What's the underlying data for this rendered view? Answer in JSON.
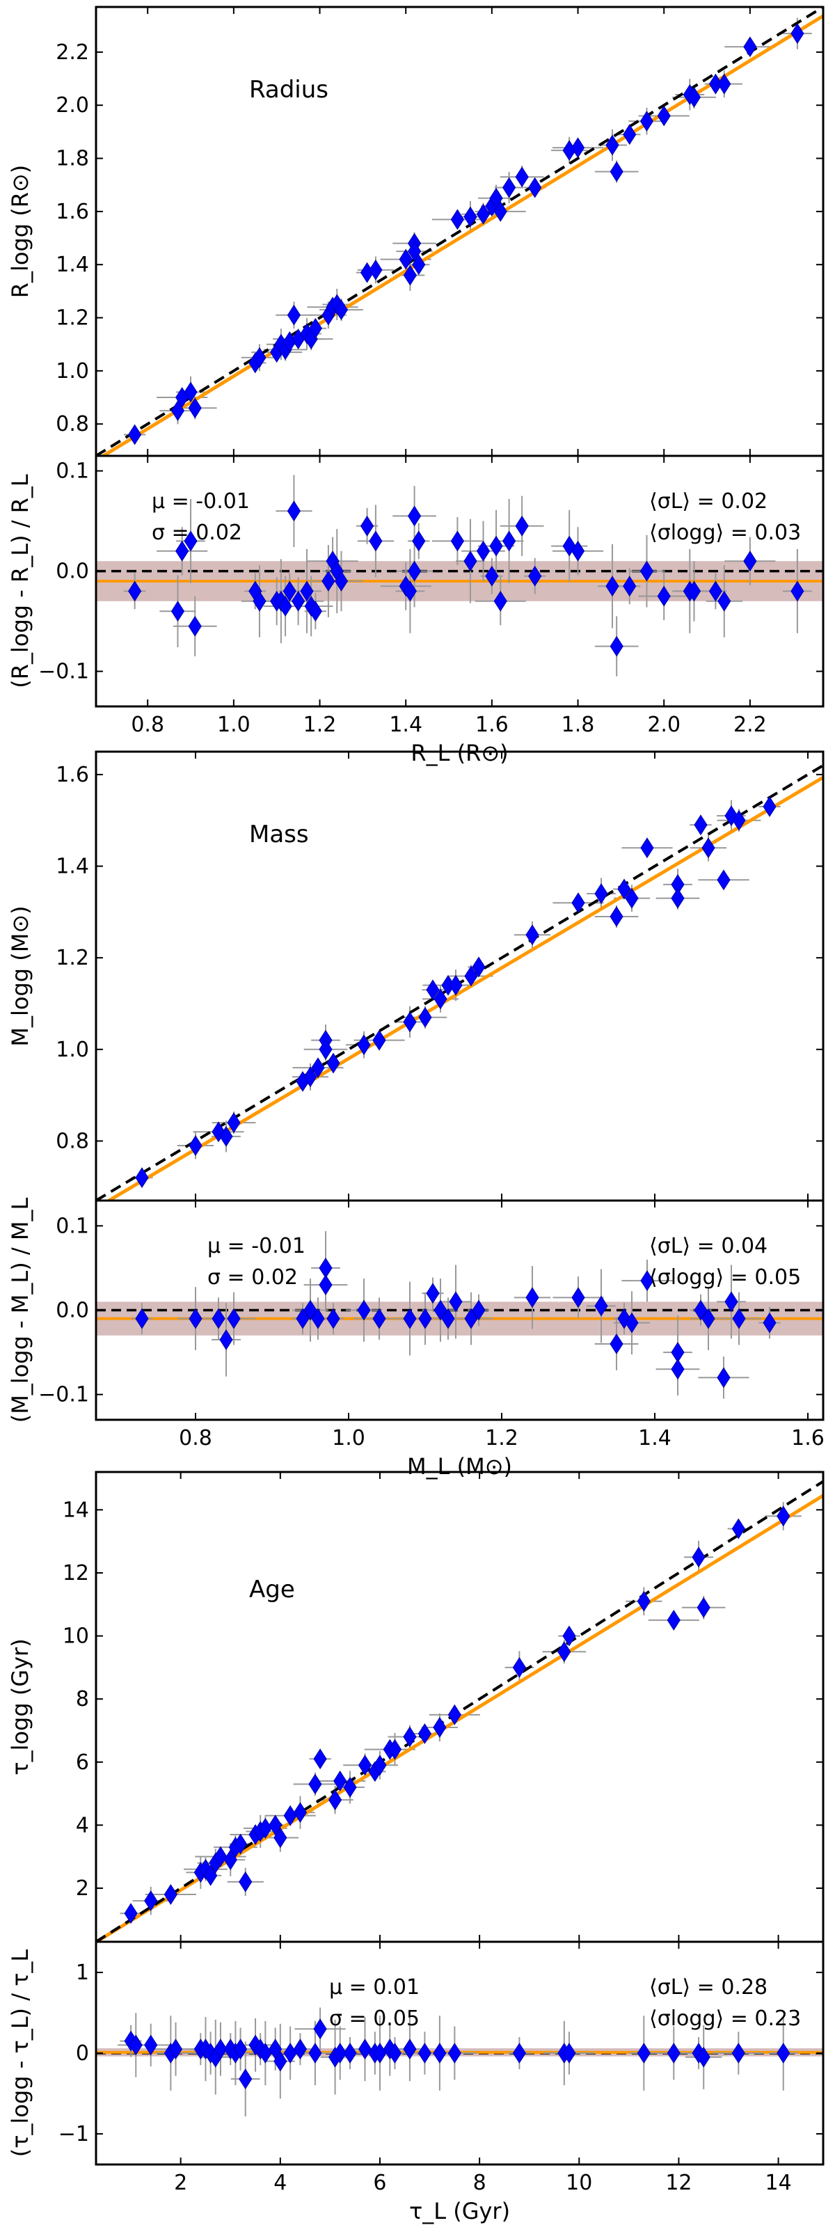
{
  "chart_data": [
    {
      "type": "scatter",
      "title": "Radius",
      "ylabel": "R_logg (R⊙)",
      "xlabel": "R_L (R⊙)",
      "xlim": [
        0.68,
        2.37
      ],
      "ylim": [
        0.68,
        2.37
      ],
      "xticks": [
        0.8,
        1.0,
        1.2,
        1.4,
        1.6,
        1.8,
        2.0,
        2.2
      ],
      "xtick_labels": [
        "0.8",
        "1.0",
        "1.2",
        "1.4",
        "1.6",
        "1.8",
        "2.0",
        "2.2"
      ],
      "yticks": [
        0.8,
        1.0,
        1.2,
        1.4,
        1.6,
        1.8,
        2.0,
        2.2
      ],
      "ytick_labels": [
        "0.8",
        "1.0",
        "1.2",
        "1.4",
        "1.6",
        "1.8",
        "2.0",
        "2.2"
      ],
      "fit_line": {
        "slope": 0.99,
        "intercept": -0.01,
        "color": "#ff9900"
      },
      "identity_line": {
        "slope": 1,
        "intercept": 0,
        "color": "#000000",
        "style": "dashed"
      },
      "x": [
        0.77,
        0.87,
        0.88,
        0.9,
        0.91,
        1.05,
        1.06,
        1.1,
        1.11,
        1.12,
        1.13,
        1.14,
        1.15,
        1.17,
        1.18,
        1.19,
        1.22,
        1.23,
        1.24,
        1.25,
        1.31,
        1.33,
        1.4,
        1.41,
        1.42,
        1.43,
        1.42,
        1.52,
        1.55,
        1.58,
        1.6,
        1.61,
        1.62,
        1.64,
        1.67,
        1.7,
        1.78,
        1.8,
        1.88,
        1.89,
        1.92,
        1.96,
        2.0,
        2.06,
        2.07,
        2.12,
        2.14,
        2.2,
        2.31
      ],
      "y": [
        0.76,
        0.85,
        0.9,
        0.92,
        0.86,
        1.03,
        1.05,
        1.07,
        1.1,
        1.08,
        1.11,
        1.21,
        1.12,
        1.14,
        1.12,
        1.16,
        1.21,
        1.24,
        1.25,
        1.23,
        1.37,
        1.38,
        1.42,
        1.36,
        1.48,
        1.4,
        1.45,
        1.57,
        1.58,
        1.59,
        1.62,
        1.65,
        1.6,
        1.69,
        1.73,
        1.69,
        1.83,
        1.84,
        1.85,
        1.75,
        1.89,
        1.94,
        1.96,
        2.04,
        2.03,
        2.08,
        2.08,
        2.22,
        2.27
      ]
    },
    {
      "type": "scatter",
      "ylabel": "(R_logg - R_L) / R_L",
      "xlabel": "R_L (R⊙)",
      "xlim": [
        0.68,
        2.37
      ],
      "ylim": [
        -0.135,
        0.115
      ],
      "xticks": [
        0.8,
        1.0,
        1.2,
        1.4,
        1.6,
        1.8,
        2.0,
        2.2
      ],
      "xtick_labels": [
        "0.8",
        "1.0",
        "1.2",
        "1.4",
        "1.6",
        "1.8",
        "2.0",
        "2.2"
      ],
      "yticks": [
        -0.1,
        0.0,
        0.1
      ],
      "ytick_labels": [
        "−0.1",
        "0.0",
        "0.1"
      ],
      "mean_line": -0.01,
      "band": [
        -0.03,
        0.01
      ],
      "stats": {
        "mu": "μ = -0.01",
        "sigma": "σ = 0.02",
        "sigma_L": "⟨σL⟩ = 0.02",
        "sigma_logg": "⟨σlogg⟩ = 0.03"
      },
      "x": [
        0.77,
        0.87,
        0.88,
        0.9,
        0.91,
        1.05,
        1.06,
        1.1,
        1.11,
        1.12,
        1.13,
        1.14,
        1.15,
        1.17,
        1.18,
        1.19,
        1.22,
        1.23,
        1.24,
        1.25,
        1.31,
        1.33,
        1.4,
        1.41,
        1.42,
        1.43,
        1.42,
        1.52,
        1.55,
        1.58,
        1.6,
        1.61,
        1.62,
        1.64,
        1.67,
        1.7,
        1.78,
        1.8,
        1.88,
        1.89,
        1.92,
        1.96,
        2.0,
        2.06,
        2.07,
        2.12,
        2.14,
        2.2,
        2.31
      ],
      "y": [
        -0.02,
        -0.04,
        0.02,
        0.03,
        -0.055,
        -0.02,
        -0.03,
        -0.03,
        -0.03,
        -0.035,
        -0.02,
        0.06,
        -0.03,
        -0.02,
        -0.035,
        -0.04,
        -0.01,
        0.01,
        0.0,
        -0.01,
        0.045,
        0.03,
        -0.015,
        -0.02,
        0.055,
        0.03,
        0.0,
        0.03,
        0.01,
        0.02,
        -0.005,
        0.025,
        -0.03,
        0.03,
        0.045,
        -0.005,
        0.025,
        0.02,
        -0.015,
        -0.075,
        -0.015,
        0.0,
        -0.025,
        -0.02,
        -0.02,
        -0.02,
        -0.03,
        0.01,
        -0.02
      ]
    },
    {
      "type": "scatter",
      "title": "Mass",
      "ylabel": "M_logg (M⊙)",
      "xlabel": "M_L (M⊙)",
      "xlim": [
        0.67,
        1.62
      ],
      "ylim": [
        0.67,
        1.65
      ],
      "xticks": [
        0.8,
        1.0,
        1.2,
        1.4,
        1.6
      ],
      "xtick_labels": [
        "0.8",
        "1.0",
        "1.2",
        "1.4",
        "1.6"
      ],
      "yticks": [
        0.8,
        1.0,
        1.2,
        1.4,
        1.6
      ],
      "ytick_labels": [
        "0.8",
        "1.0",
        "1.2",
        "1.4",
        "1.6"
      ],
      "fit_line": {
        "slope": 0.99,
        "intercept": -0.01,
        "color": "#ff9900"
      },
      "identity_line": {
        "slope": 1,
        "intercept": 0,
        "color": "#000000",
        "style": "dashed"
      },
      "x": [
        0.73,
        0.8,
        0.83,
        0.84,
        0.85,
        0.94,
        0.95,
        0.96,
        0.97,
        0.97,
        0.98,
        1.02,
        1.04,
        1.08,
        1.1,
        1.11,
        1.12,
        1.13,
        1.14,
        1.16,
        1.17,
        1.24,
        1.3,
        1.33,
        1.35,
        1.36,
        1.37,
        1.39,
        1.43,
        1.43,
        1.46,
        1.47,
        1.49,
        1.5,
        1.51,
        1.55
      ],
      "y": [
        0.72,
        0.79,
        0.82,
        0.81,
        0.84,
        0.93,
        0.94,
        0.96,
        1.02,
        1.0,
        0.97,
        1.01,
        1.02,
        1.06,
        1.07,
        1.13,
        1.11,
        1.14,
        1.14,
        1.16,
        1.18,
        1.25,
        1.32,
        1.34,
        1.29,
        1.35,
        1.33,
        1.44,
        1.36,
        1.33,
        1.49,
        1.44,
        1.37,
        1.51,
        1.5,
        1.53
      ]
    },
    {
      "type": "scatter",
      "ylabel": "(M_logg - M_L) / M_L",
      "xlabel": "M_L (M⊙)",
      "xlim": [
        0.67,
        1.62
      ],
      "ylim": [
        -0.13,
        0.13
      ],
      "xticks": [
        0.8,
        1.0,
        1.2,
        1.4,
        1.6
      ],
      "xtick_labels": [
        "0.8",
        "1.0",
        "1.2",
        "1.4",
        "1.6"
      ],
      "yticks": [
        -0.1,
        0.0,
        0.1
      ],
      "ytick_labels": [
        "−0.1",
        "0.0",
        "0.1"
      ],
      "mean_line": -0.01,
      "band": [
        -0.03,
        0.01
      ],
      "stats": {
        "mu": "μ = -0.01",
        "sigma": "σ = 0.02",
        "sigma_L": "⟨σL⟩ = 0.04",
        "sigma_logg": "⟨σlogg⟩ = 0.05"
      },
      "x": [
        0.73,
        0.8,
        0.83,
        0.84,
        0.85,
        0.94,
        0.95,
        0.96,
        0.97,
        0.97,
        0.98,
        1.02,
        1.04,
        1.08,
        1.1,
        1.11,
        1.12,
        1.13,
        1.14,
        1.16,
        1.17,
        1.24,
        1.3,
        1.33,
        1.35,
        1.36,
        1.37,
        1.39,
        1.43,
        1.43,
        1.46,
        1.47,
        1.49,
        1.5,
        1.51,
        1.55
      ],
      "y": [
        -0.01,
        -0.01,
        -0.01,
        -0.035,
        -0.01,
        -0.01,
        0.0,
        -0.01,
        0.05,
        0.03,
        -0.01,
        0.0,
        -0.01,
        -0.01,
        -0.01,
        0.02,
        0.0,
        -0.01,
        0.01,
        -0.01,
        0.0,
        0.015,
        0.015,
        0.005,
        -0.04,
        -0.01,
        -0.015,
        0.035,
        -0.05,
        -0.07,
        0.0,
        -0.01,
        -0.08,
        0.01,
        -0.01,
        -0.015
      ]
    },
    {
      "type": "scatter",
      "title": "Age",
      "ylabel": "τ_logg (Gyr)",
      "xlabel": "τ_L (Gyr)",
      "xlim": [
        0.3,
        14.9
      ],
      "ylim": [
        0.3,
        15.2
      ],
      "xticks": [
        2,
        4,
        6,
        8,
        10,
        12,
        14
      ],
      "xtick_labels": [
        "2",
        "4",
        "6",
        "8",
        "10",
        "12",
        "14"
      ],
      "yticks": [
        2,
        4,
        6,
        8,
        10,
        12,
        14
      ],
      "ytick_labels": [
        "2",
        "4",
        "6",
        "8",
        "10",
        "12",
        "14"
      ],
      "fit_line": {
        "slope": 0.97,
        "intercept": 0.0,
        "color": "#ff9900"
      },
      "identity_line": {
        "slope": 1,
        "intercept": 0,
        "color": "#000000",
        "style": "dashed"
      },
      "x": [
        1.0,
        1.4,
        1.8,
        2.4,
        2.5,
        2.6,
        2.7,
        2.8,
        3.0,
        3.1,
        3.2,
        3.3,
        3.5,
        3.6,
        3.7,
        3.9,
        4.0,
        4.2,
        4.4,
        4.7,
        4.8,
        5.1,
        5.2,
        5.4,
        5.7,
        5.9,
        6.0,
        6.2,
        6.3,
        6.6,
        6.9,
        7.2,
        7.5,
        8.8,
        9.7,
        9.8,
        11.3,
        11.9,
        12.4,
        12.5,
        13.2,
        14.1
      ],
      "y": [
        1.2,
        1.6,
        1.8,
        2.5,
        2.6,
        2.4,
        2.8,
        3.0,
        2.9,
        3.3,
        3.4,
        2.2,
        3.7,
        3.8,
        3.9,
        4.0,
        3.6,
        4.3,
        4.4,
        5.3,
        6.1,
        4.8,
        5.4,
        5.2,
        5.9,
        5.7,
        5.9,
        6.4,
        6.4,
        6.8,
        6.9,
        7.1,
        7.5,
        9.0,
        9.5,
        10.0,
        11.1,
        10.5,
        12.5,
        10.9,
        13.4,
        13.8
      ]
    },
    {
      "type": "scatter",
      "ylabel": "(τ_logg - τ_L) / τ_L",
      "xlabel": "τ_L (Gyr)",
      "xlim": [
        0.3,
        14.9
      ],
      "ylim": [
        -1.38,
        1.38
      ],
      "xticks": [
        2,
        4,
        6,
        8,
        10,
        12,
        14
      ],
      "xtick_labels": [
        "2",
        "4",
        "6",
        "8",
        "10",
        "12",
        "14"
      ],
      "yticks": [
        -1,
        0,
        1
      ],
      "ytick_labels": [
        "−1",
        "0",
        "1"
      ],
      "mean_line": 0.01,
      "band": [
        -0.04,
        0.06
      ],
      "stats": {
        "mu": "μ = 0.01",
        "sigma": "σ = 0.05",
        "sigma_L": "⟨σL⟩ = 0.28",
        "sigma_logg": "⟨σlogg⟩ = 0.23"
      },
      "x": [
        1.0,
        1.1,
        1.4,
        1.8,
        1.9,
        2.4,
        2.5,
        2.6,
        2.7,
        2.8,
        3.0,
        3.1,
        3.2,
        3.3,
        3.5,
        3.6,
        3.7,
        3.9,
        4.0,
        4.2,
        4.4,
        4.7,
        4.8,
        5.1,
        5.2,
        5.4,
        5.7,
        5.9,
        6.0,
        6.2,
        6.3,
        6.6,
        6.9,
        7.2,
        7.5,
        8.8,
        9.7,
        9.8,
        11.3,
        11.9,
        12.4,
        12.5,
        13.2,
        14.1
      ],
      "y": [
        0.15,
        0.1,
        0.1,
        0.0,
        0.05,
        0.05,
        0.05,
        0.0,
        -0.05,
        0.05,
        0.05,
        0.0,
        0.05,
        -0.32,
        0.1,
        0.05,
        0.0,
        0.05,
        -0.1,
        0.0,
        0.05,
        0.0,
        0.3,
        -0.05,
        0.0,
        0.0,
        0.05,
        0.0,
        0.0,
        0.05,
        0.0,
        0.05,
        0.0,
        0.0,
        0.0,
        0.0,
        0.0,
        0.0,
        0.0,
        0.0,
        0.0,
        -0.05,
        0.0,
        0.0
      ]
    }
  ]
}
